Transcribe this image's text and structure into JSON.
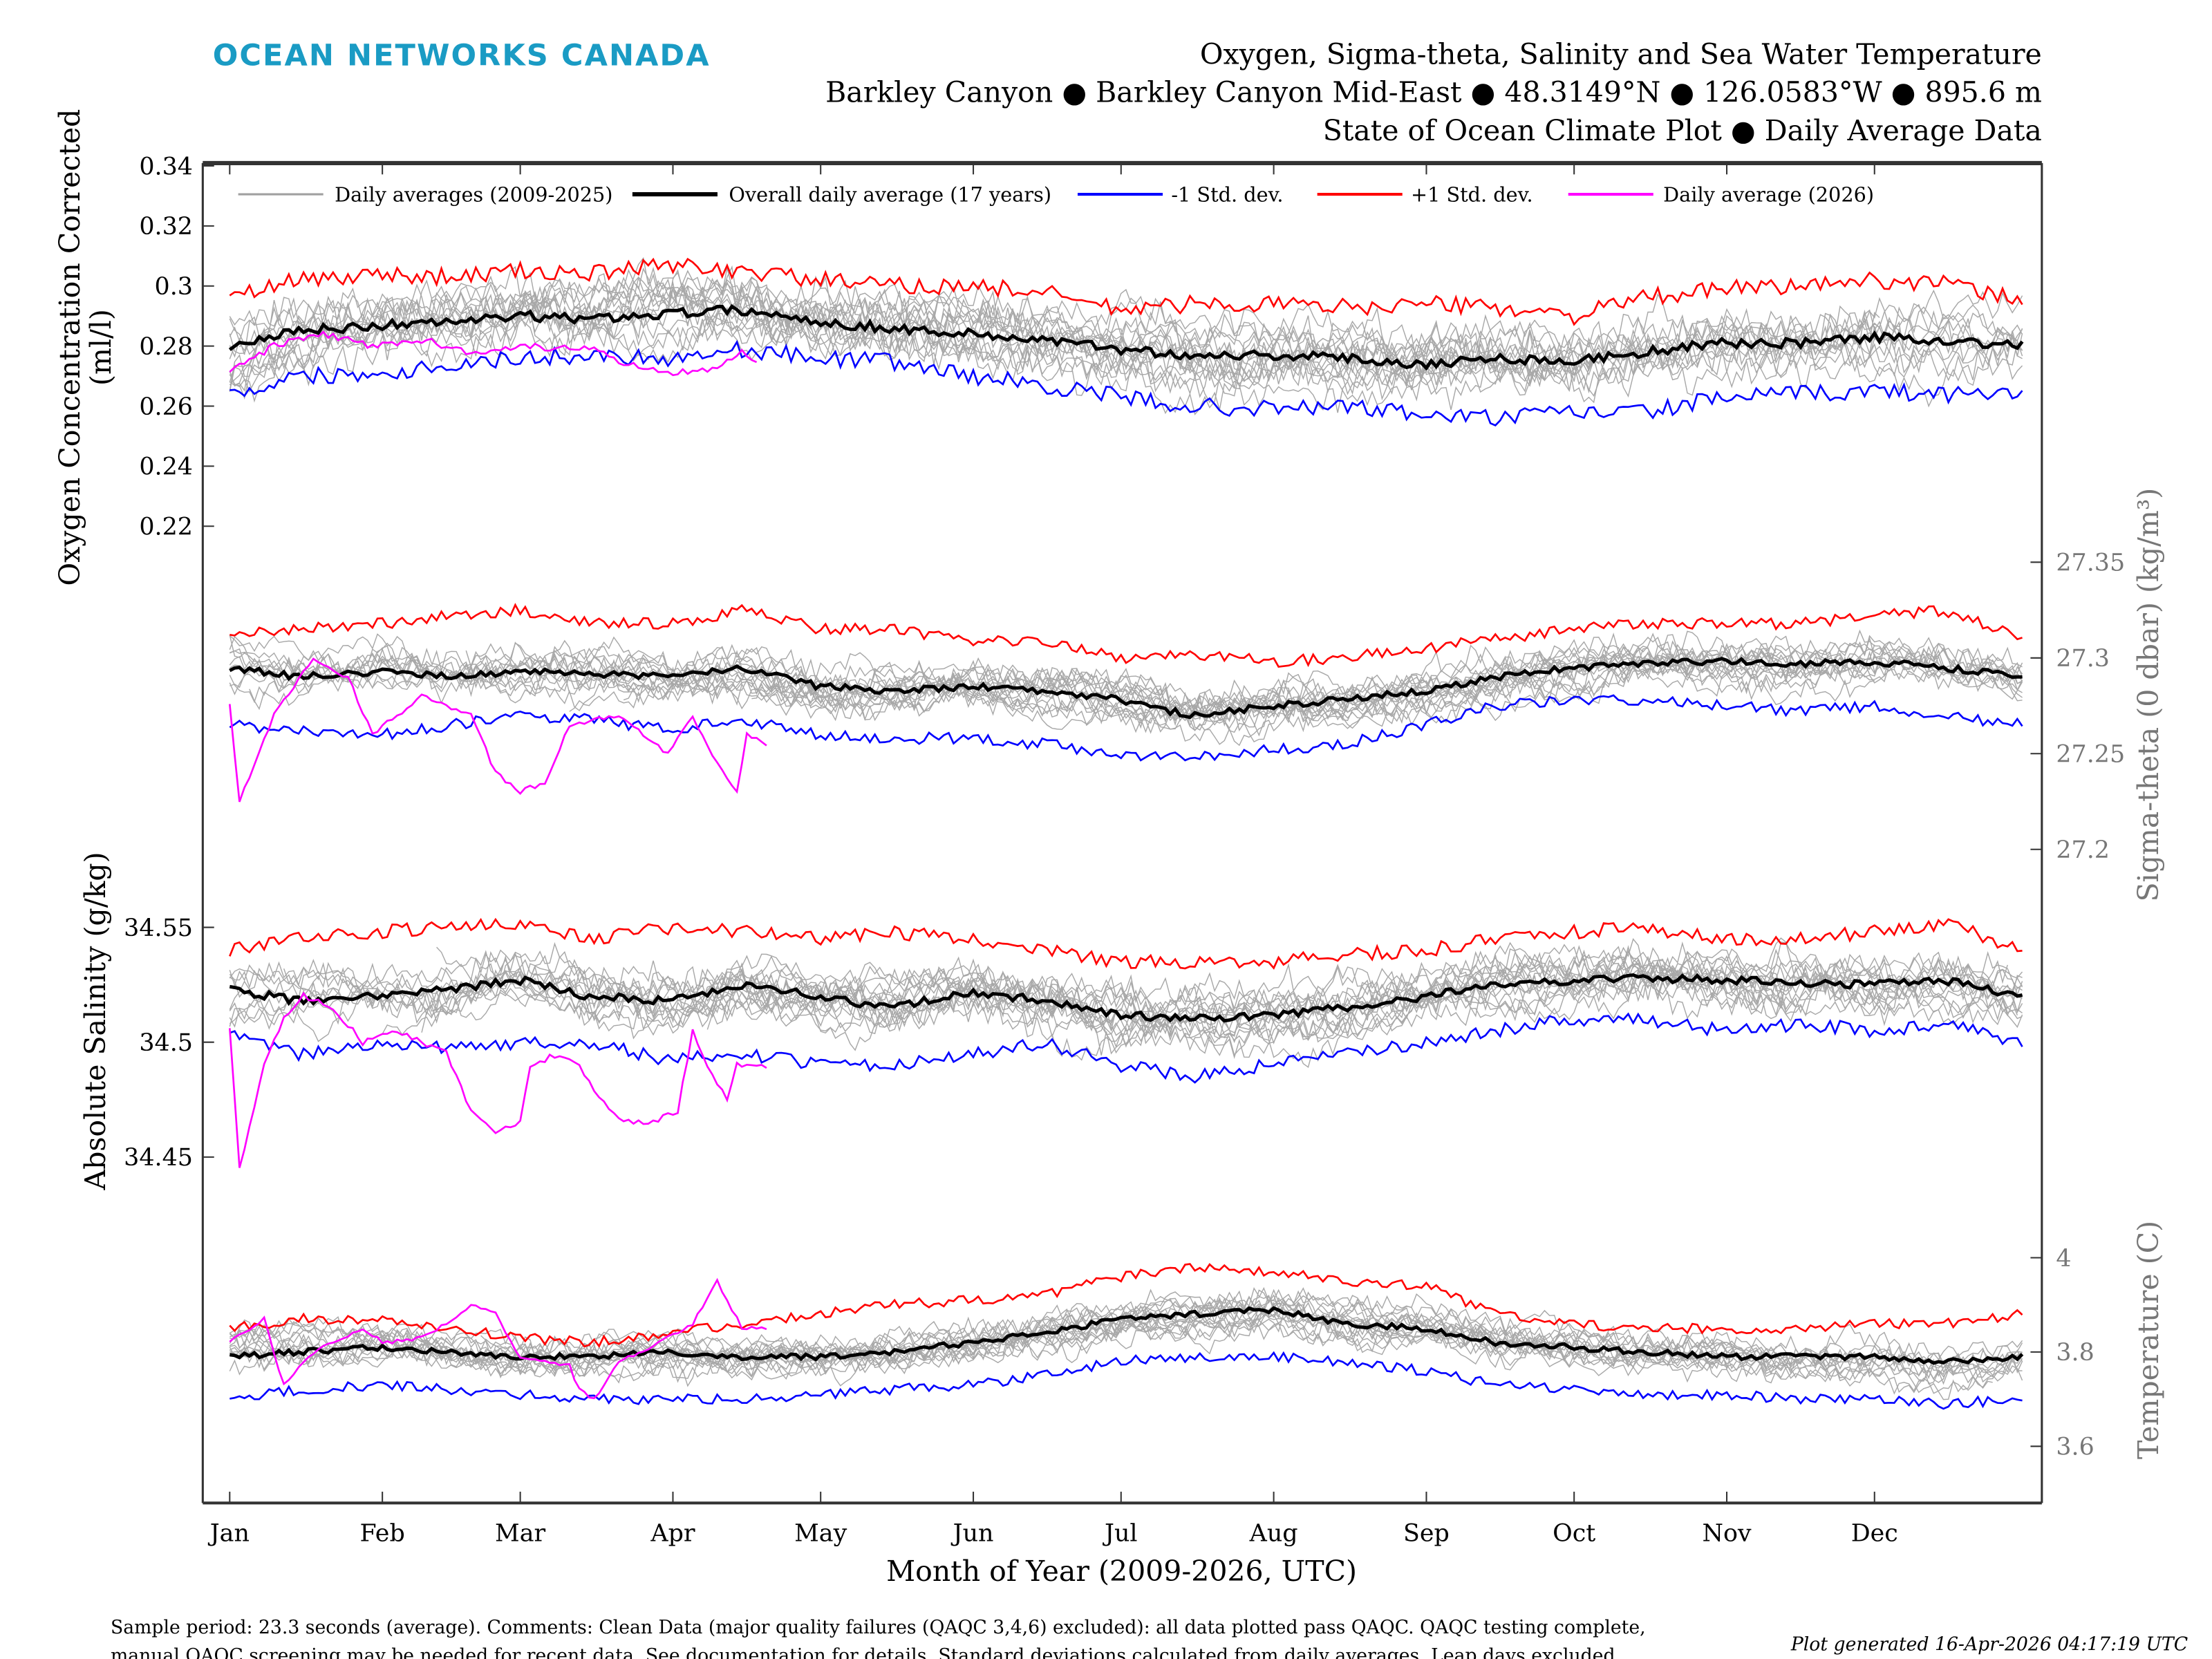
{
  "header": {
    "logo": "OCEAN NETWORKS CANADA",
    "title_line1": "Oxygen, Sigma-theta, Salinity and Sea Water Temperature",
    "title_line2": "Barkley Canyon ● Barkley Canyon Mid-East ● 48.3149°N ● 126.0583°W ● 895.6 m",
    "title_line3": "State of Ocean Climate Plot ● Daily Average Data"
  },
  "footer": {
    "comment_line1": "Sample period: 23.3 seconds (average). Comments: Clean Data (major quality failures (QAQC 3,4,6) excluded): all data plotted pass QAQC. QAQC testing complete,",
    "comment_line2": "manual QAQC screening may be needed for recent data. See documentation for details. Standard deviations calculated from daily averages. Leap days excluded.",
    "generated": "Plot generated 16-Apr-2026 04:17:19 UTC"
  },
  "chart_data": {
    "type": "line",
    "xlabel": "Month of Year (2009-2026, UTC)",
    "x_ticks": [
      "Jan",
      "Feb",
      "Mar",
      "Apr",
      "May",
      "Jun",
      "Jul",
      "Aug",
      "Sep",
      "Oct",
      "Nov",
      "Dec"
    ],
    "x_tick_days": [
      1,
      32,
      60,
      91,
      121,
      152,
      182,
      213,
      244,
      274,
      305,
      335
    ],
    "xlim_days": [
      -5,
      365
    ],
    "legend": {
      "placement": "top",
      "entries": [
        {
          "label": "Daily averages (2009-2025)",
          "color": "#a0a0a0"
        },
        {
          "label": "Overall daily average (17 years)",
          "color": "#000000"
        },
        {
          "label": "-1 Std. dev.",
          "color": "#0000ff"
        },
        {
          "label": "+1 Std. dev.",
          "color": "#ff0000"
        },
        {
          "label": "Daily average (2026)",
          "color": "#ff00ff"
        }
      ]
    },
    "days": [
      1,
      15,
      32,
      46,
      60,
      74,
      91,
      105,
      121,
      135,
      152,
      166,
      182,
      196,
      213,
      227,
      244,
      258,
      274,
      288,
      305,
      319,
      335,
      349,
      365
    ],
    "panels": [
      {
        "ylabel": [
          "Oxygen Concentration Corrected",
          "(ml/l)"
        ],
        "axis_side": "left",
        "ylim": [
          0.21,
          0.34
        ],
        "ticks": [
          "0.22",
          "0.24",
          "0.26",
          "0.28",
          "0.3",
          "0.32",
          "0.34"
        ],
        "tick_values": [
          0.22,
          0.24,
          0.26,
          0.28,
          0.3,
          0.32,
          0.34
        ],
        "mean": [
          0.28,
          0.285,
          0.287,
          0.288,
          0.29,
          0.289,
          0.291,
          0.292,
          0.288,
          0.286,
          0.284,
          0.282,
          0.279,
          0.277,
          0.277,
          0.276,
          0.274,
          0.276,
          0.275,
          0.278,
          0.281,
          0.281,
          0.283,
          0.282,
          0.28
        ],
        "plus_std": [
          0.296,
          0.302,
          0.304,
          0.303,
          0.305,
          0.304,
          0.307,
          0.305,
          0.302,
          0.3,
          0.3,
          0.298,
          0.292,
          0.294,
          0.294,
          0.293,
          0.294,
          0.293,
          0.29,
          0.296,
          0.299,
          0.3,
          0.302,
          0.301,
          0.295
        ],
        "minus_std": [
          0.264,
          0.27,
          0.271,
          0.274,
          0.276,
          0.277,
          0.276,
          0.279,
          0.276,
          0.275,
          0.27,
          0.267,
          0.263,
          0.26,
          0.259,
          0.26,
          0.257,
          0.256,
          0.258,
          0.258,
          0.263,
          0.264,
          0.265,
          0.264,
          0.265
        ],
        "y2026": {
          "days": [
            1,
            10,
            20,
            30,
            40,
            50,
            60,
            70,
            75,
            80,
            90,
            100,
            105,
            108
          ],
          "values": [
            0.272,
            0.28,
            0.284,
            0.28,
            0.282,
            0.278,
            0.28,
            0.279,
            0.28,
            0.275,
            0.271,
            0.273,
            0.279,
            0.274
          ]
        }
      },
      {
        "ylabel": [
          "Sigma-theta (0 dbar) (kg/m³)"
        ],
        "axis_side": "right",
        "ylim": [
          27.175,
          27.365
        ],
        "ticks": [
          "27.2",
          "27.25",
          "27.3",
          "27.35"
        ],
        "tick_values": [
          27.2,
          27.25,
          27.3,
          27.35
        ],
        "mean": [
          27.295,
          27.29,
          27.293,
          27.29,
          27.293,
          27.292,
          27.29,
          27.295,
          27.285,
          27.283,
          27.285,
          27.283,
          27.278,
          27.27,
          27.275,
          27.278,
          27.283,
          27.29,
          27.295,
          27.297,
          27.298,
          27.297,
          27.298,
          27.295,
          27.29
        ],
        "plus_std": [
          27.312,
          27.315,
          27.318,
          27.322,
          27.325,
          27.318,
          27.318,
          27.325,
          27.315,
          27.315,
          27.308,
          27.31,
          27.3,
          27.302,
          27.298,
          27.3,
          27.305,
          27.31,
          27.315,
          27.318,
          27.318,
          27.318,
          27.322,
          27.325,
          27.31
        ],
        "minus_std": [
          27.265,
          27.262,
          27.26,
          27.265,
          27.27,
          27.268,
          27.262,
          27.268,
          27.26,
          27.258,
          27.258,
          27.255,
          27.25,
          27.248,
          27.252,
          27.255,
          27.265,
          27.275,
          27.278,
          27.278,
          27.275,
          27.272,
          27.275,
          27.27,
          27.265
        ],
        "y2026": {
          "days": [
            1,
            3,
            10,
            18,
            25,
            30,
            40,
            50,
            55,
            60,
            65,
            70,
            80,
            85,
            90,
            95,
            100,
            104,
            106,
            110
          ],
          "values": [
            27.275,
            27.225,
            27.27,
            27.3,
            27.29,
            27.26,
            27.28,
            27.27,
            27.24,
            27.23,
            27.235,
            27.265,
            27.27,
            27.26,
            27.25,
            27.27,
            27.245,
            27.23,
            27.26,
            27.255
          ]
        }
      },
      {
        "ylabel": [
          "Absolute Salinity (g/kg)"
        ],
        "axis_side": "left",
        "ylim": [
          34.44,
          34.575
        ],
        "ticks": [
          "34.45",
          "34.5",
          "34.55"
        ],
        "tick_values": [
          34.45,
          34.5,
          34.55
        ],
        "mean": [
          34.523,
          34.518,
          34.52,
          34.523,
          34.527,
          34.52,
          34.518,
          34.525,
          34.52,
          34.515,
          34.522,
          34.518,
          34.512,
          34.51,
          34.512,
          34.515,
          34.52,
          34.525,
          34.527,
          34.528,
          34.527,
          34.526,
          34.525,
          34.527,
          34.52
        ],
        "plus_std": [
          34.54,
          34.545,
          34.548,
          34.55,
          34.552,
          34.545,
          34.55,
          34.548,
          34.545,
          34.548,
          34.545,
          34.54,
          34.535,
          34.535,
          34.535,
          34.538,
          34.54,
          34.545,
          34.548,
          34.55,
          34.545,
          34.545,
          34.548,
          34.552,
          34.54
        ],
        "minus_std": [
          34.505,
          34.495,
          34.5,
          34.497,
          34.5,
          34.5,
          34.492,
          34.495,
          34.49,
          34.49,
          34.495,
          34.5,
          34.49,
          34.485,
          34.49,
          34.495,
          34.5,
          34.505,
          34.51,
          34.51,
          34.505,
          34.508,
          34.505,
          34.508,
          34.5
        ],
        "y2026": {
          "days": [
            1,
            3,
            8,
            12,
            16,
            22,
            28,
            35,
            40,
            45,
            50,
            55,
            60,
            62,
            68,
            72,
            78,
            82,
            87,
            92,
            95,
            98,
            102,
            104,
            110
          ],
          "values": [
            34.505,
            34.445,
            34.49,
            34.51,
            34.52,
            34.515,
            34.5,
            34.505,
            34.5,
            34.495,
            34.47,
            34.46,
            34.465,
            34.49,
            34.495,
            34.49,
            34.47,
            34.465,
            34.465,
            34.47,
            34.505,
            34.49,
            34.475,
            34.49,
            34.49
          ]
        }
      },
      {
        "ylabel": [
          "Temperature (C)"
        ],
        "axis_side": "right",
        "ylim": [
          3.53,
          4.12
        ],
        "ticks": [
          "3.6",
          "3.8",
          "4"
        ],
        "tick_values": [
          3.6,
          3.8,
          4.0
        ],
        "mean": [
          3.79,
          3.8,
          3.81,
          3.8,
          3.79,
          3.79,
          3.8,
          3.79,
          3.79,
          3.8,
          3.82,
          3.84,
          3.87,
          3.88,
          3.89,
          3.86,
          3.85,
          3.82,
          3.81,
          3.8,
          3.79,
          3.79,
          3.79,
          3.78,
          3.79
        ],
        "plus_std": [
          3.85,
          3.87,
          3.87,
          3.85,
          3.83,
          3.82,
          3.84,
          3.86,
          3.88,
          3.9,
          3.91,
          3.92,
          3.96,
          3.98,
          3.97,
          3.95,
          3.94,
          3.88,
          3.86,
          3.85,
          3.85,
          3.85,
          3.86,
          3.86,
          3.88
        ],
        "minus_std": [
          3.7,
          3.72,
          3.73,
          3.72,
          3.71,
          3.7,
          3.7,
          3.7,
          3.71,
          3.72,
          3.73,
          3.75,
          3.78,
          3.79,
          3.79,
          3.78,
          3.76,
          3.73,
          3.72,
          3.71,
          3.71,
          3.7,
          3.7,
          3.69,
          3.7
        ],
        "y2026": {
          "days": [
            1,
            8,
            12,
            18,
            22,
            28,
            32,
            40,
            45,
            50,
            55,
            60,
            65,
            70,
            72,
            75,
            80,
            85,
            90,
            95,
            100,
            105,
            110
          ],
          "values": [
            3.82,
            3.87,
            3.73,
            3.8,
            3.82,
            3.85,
            3.82,
            3.83,
            3.86,
            3.9,
            3.88,
            3.79,
            3.78,
            3.77,
            3.72,
            3.7,
            3.78,
            3.8,
            3.83,
            3.86,
            3.95,
            3.85,
            3.85
          ]
        }
      }
    ]
  }
}
